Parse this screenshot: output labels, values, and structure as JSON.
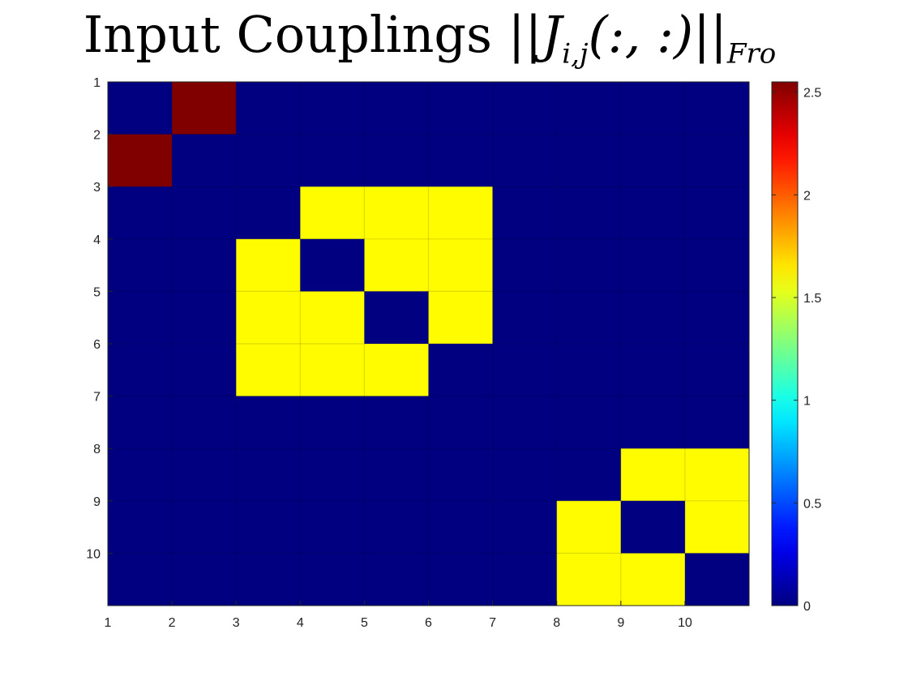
{
  "chart_data": {
    "type": "heatmap",
    "title_text": "Input Couplings",
    "title_math": "||J",
    "title_math_sub": "i,j",
    "title_math_args": "(:, :)||",
    "title_math_sub2": "Fro",
    "x_tick_labels": [
      "1",
      "2",
      "3",
      "4",
      "5",
      "6",
      "7",
      "8",
      "9",
      "10"
    ],
    "y_tick_labels": [
      "1",
      "2",
      "3",
      "4",
      "5",
      "6",
      "7",
      "8",
      "9",
      "10"
    ],
    "rows": 10,
    "cols": 10,
    "values": [
      [
        0,
        2.55,
        0,
        0,
        0,
        0,
        0,
        0,
        0,
        0
      ],
      [
        2.55,
        0,
        0,
        0,
        0,
        0,
        0,
        0,
        0,
        0
      ],
      [
        0,
        0,
        0,
        1.6,
        1.6,
        1.6,
        0,
        0,
        0,
        0
      ],
      [
        0,
        0,
        1.6,
        0,
        1.6,
        1.6,
        0,
        0,
        0,
        0
      ],
      [
        0,
        0,
        1.6,
        1.6,
        0,
        1.6,
        0,
        0,
        0,
        0
      ],
      [
        0,
        0,
        1.6,
        1.6,
        1.6,
        0,
        0,
        0,
        0,
        0
      ],
      [
        0,
        0,
        0,
        0,
        0,
        0,
        0,
        0,
        0,
        0
      ],
      [
        0,
        0,
        0,
        0,
        0,
        0,
        0,
        0,
        1.6,
        1.6
      ],
      [
        0,
        0,
        0,
        0,
        0,
        0,
        0,
        1.6,
        0,
        1.6
      ],
      [
        0,
        0,
        0,
        0,
        0,
        0,
        0,
        1.6,
        1.6,
        0
      ]
    ],
    "colorbar": {
      "min": 0,
      "max": 2.55,
      "ticks": [
        0,
        0.5,
        1,
        1.5,
        2,
        2.5
      ],
      "tick_labels": [
        "0",
        "0.5",
        "1",
        "1.5",
        "2",
        "2.5"
      ],
      "colormap": "jet"
    },
    "grid": true
  }
}
